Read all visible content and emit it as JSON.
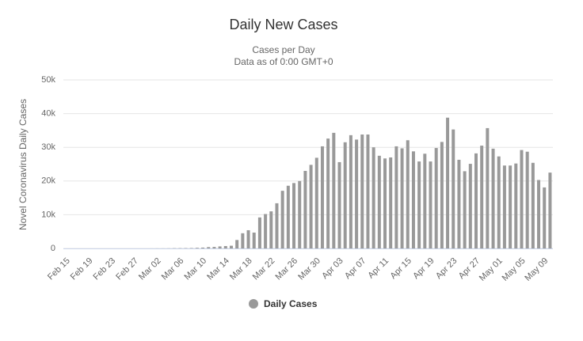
{
  "chart_data": {
    "type": "bar",
    "title": "Daily New Cases",
    "subtitle": [
      "Cases per Day",
      "Data as of 0:00 GMT+0"
    ],
    "y_label": "Novel Coronavirus Daily Cases",
    "categories": [
      "Feb 15",
      null,
      null,
      null,
      "Feb 19",
      null,
      null,
      null,
      "Feb 23",
      null,
      null,
      null,
      "Feb 27",
      null,
      null,
      null,
      "Mar 02",
      null,
      null,
      null,
      "Mar 06",
      null,
      null,
      null,
      "Mar 10",
      null,
      null,
      null,
      "Mar 14",
      null,
      null,
      null,
      "Mar 18",
      null,
      null,
      null,
      "Mar 22",
      null,
      null,
      null,
      "Mar 26",
      null,
      null,
      null,
      "Mar 30",
      null,
      null,
      null,
      "Apr 03",
      null,
      null,
      null,
      "Apr 07",
      null,
      null,
      null,
      "Apr 11",
      null,
      null,
      null,
      "Apr 15",
      null,
      null,
      null,
      "Apr 19",
      null,
      null,
      null,
      "Apr 23",
      null,
      null,
      null,
      "Apr 27",
      null,
      null,
      null,
      "May 01",
      null,
      null,
      null,
      "May 05",
      null,
      null,
      null,
      "May 09",
      null
    ],
    "series": [
      {
        "name": "Daily Cases",
        "color": "#999999",
        "values": [
          0,
          0,
          0,
          0,
          0,
          0,
          0,
          0,
          0,
          0,
          0,
          0,
          0,
          0,
          0,
          10,
          20,
          20,
          30,
          70,
          80,
          100,
          120,
          180,
          250,
          400,
          450,
          600,
          700,
          800,
          2500,
          4500,
          5400,
          4700,
          9200,
          10200,
          11000,
          13400,
          17100,
          18600,
          19400,
          20000,
          23000,
          24800,
          26900,
          30300,
          32600,
          34300,
          25600,
          31500,
          33600,
          32300,
          33800,
          33800,
          30000,
          27500,
          26700,
          27000,
          30300,
          29700,
          32100,
          28800,
          25800,
          28100,
          25800,
          29800,
          31600,
          38800,
          35300,
          26300,
          22900,
          25100,
          28200,
          30500,
          35700,
          29600,
          27300,
          24600,
          24600,
          25200,
          29200,
          28700,
          25400,
          20300,
          18100,
          22500
        ]
      }
    ],
    "ylim": [
      0,
      50000
    ],
    "yticks": [
      0,
      {
        "value": 10000,
        "label": "10k"
      },
      {
        "value": 20000,
        "label": "20k"
      },
      {
        "value": 30000,
        "label": "30k"
      },
      {
        "value": 40000,
        "label": "40k"
      },
      {
        "value": 50000,
        "label": "50k"
      }
    ],
    "grid": true
  }
}
